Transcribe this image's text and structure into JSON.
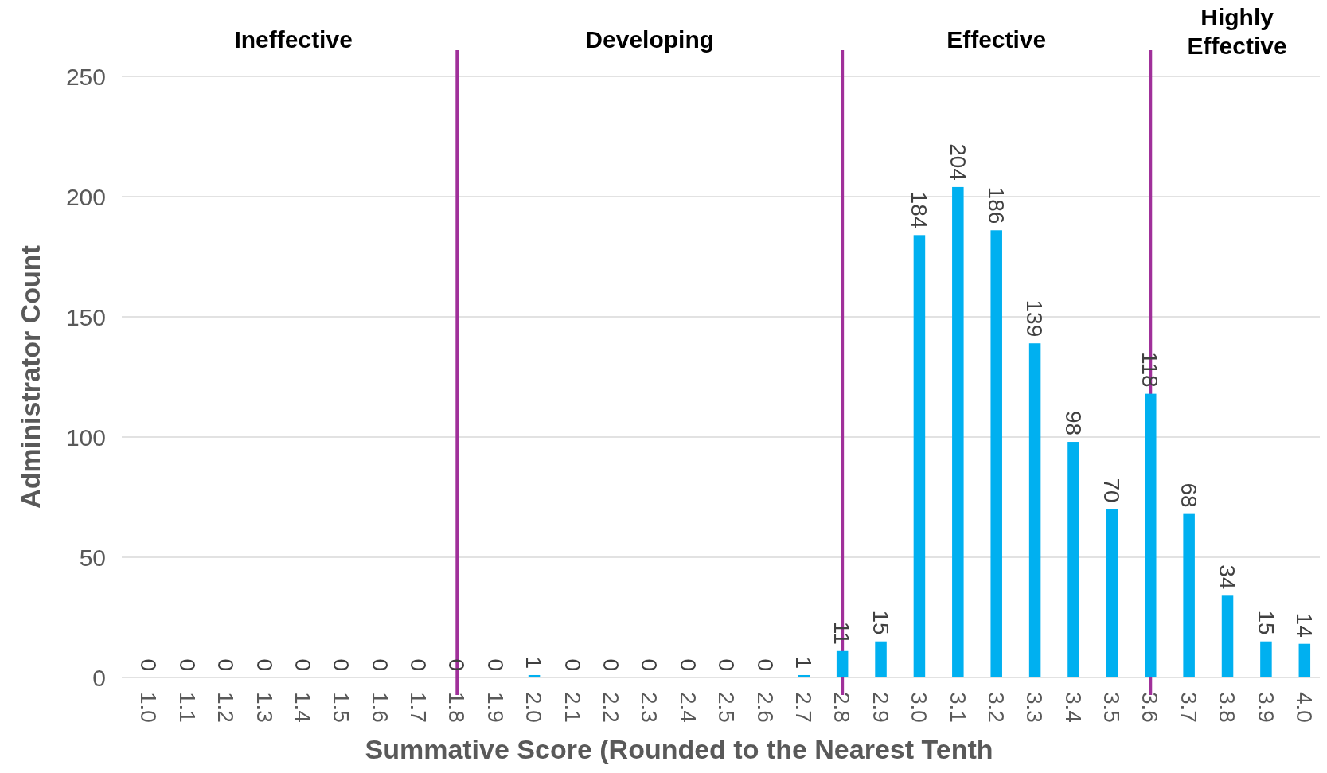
{
  "chart_data": {
    "type": "bar",
    "xlabel": "Summative Score (Rounded to the Nearest Tenth",
    "ylabel": "Administrator Count",
    "categories": [
      "1.0",
      "1.1",
      "1.2",
      "1.3",
      "1.4",
      "1.5",
      "1.6",
      "1.7",
      "1.8",
      "1.9",
      "2.0",
      "2.1",
      "2.2",
      "2.3",
      "2.4",
      "2.5",
      "2.6",
      "2.7",
      "2.8",
      "2.9",
      "3.0",
      "3.1",
      "3.2",
      "3.3",
      "3.4",
      "3.5",
      "3.6",
      "3.7",
      "3.8",
      "3.9",
      "4.0"
    ],
    "values": [
      0,
      0,
      0,
      0,
      0,
      0,
      0,
      0,
      0,
      0,
      1,
      0,
      0,
      0,
      0,
      0,
      0,
      1,
      11,
      15,
      184,
      204,
      186,
      139,
      98,
      70,
      118,
      68,
      34,
      15,
      14
    ],
    "color": "#00b0f0",
    "data_labels": true,
    "ylim": [
      0,
      250
    ],
    "yticks": [
      0,
      50,
      100,
      150,
      200,
      250
    ],
    "grid": "y",
    "ref_lines": [
      {
        "axis": "x",
        "value": "1.8",
        "color": "#a0309a"
      },
      {
        "axis": "x",
        "value": "2.8",
        "color": "#a0309a"
      },
      {
        "axis": "x",
        "value": "3.6",
        "color": "#a0309a"
      }
    ],
    "annotations": [
      "Ineffective",
      "Developing",
      "Effective",
      "Highly Effective"
    ]
  }
}
